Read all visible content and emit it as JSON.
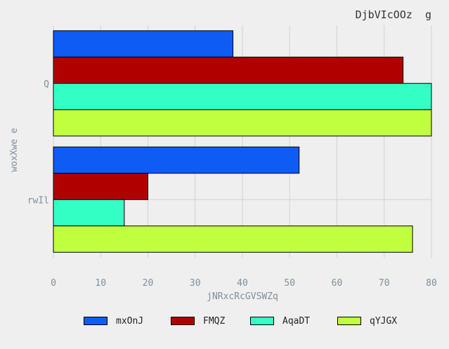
{
  "chart_data": {
    "type": "bar",
    "orientation": "horizontal",
    "title": "DjbVIcOOz  g",
    "xlabel": "jNRxcRcGVSWZq",
    "ylabel": "woxXwe e",
    "categories": [
      "Q",
      "rwIl"
    ],
    "series": [
      {
        "name": "mxOnJ",
        "color": "#0f5cf5",
        "values": [
          38,
          52
        ]
      },
      {
        "name": "FMQZ",
        "color": "#b10000",
        "values": [
          74,
          20
        ]
      },
      {
        "name": "AqaDT",
        "color": "#33ffc4",
        "values": [
          80,
          15
        ]
      },
      {
        "name": "qYJGX",
        "color": "#c0ff3e",
        "values": [
          80,
          76
        ]
      }
    ],
    "xlim": [
      0,
      80
    ],
    "xticks": [
      0,
      10,
      20,
      30,
      40,
      50,
      60,
      70,
      80
    ],
    "grid": true,
    "legend_position": "bottom"
  }
}
